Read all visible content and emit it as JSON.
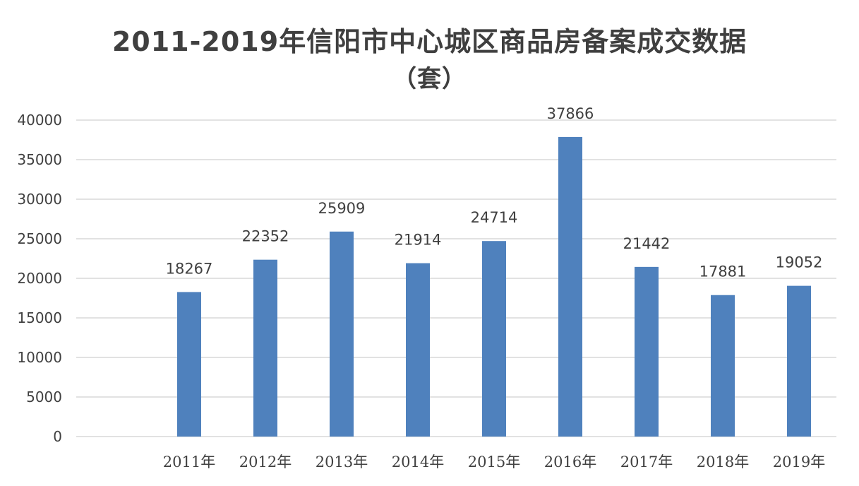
{
  "chart_data": {
    "type": "bar",
    "title": "2011-2019年信阳市中心城区商品房备案成交数据",
    "subtitle": "（套）",
    "categories": [
      "2011年",
      "2012年",
      "2013年",
      "2014年",
      "2015年",
      "2016年",
      "2017年",
      "2018年",
      "2019年"
    ],
    "values": [
      18267,
      22352,
      25909,
      21914,
      24714,
      37866,
      21442,
      17881,
      19052
    ],
    "data_labels": [
      "18267",
      "22352",
      "25909",
      "21914",
      "24714",
      "37866",
      "21442",
      "17881",
      "19052"
    ],
    "y_ticks": [
      "0",
      "5000",
      "10000",
      "15000",
      "20000",
      "25000",
      "30000",
      "35000",
      "40000"
    ],
    "ylim": [
      0,
      40000
    ],
    "xlabel": "",
    "ylabel": "",
    "grid": true,
    "legend": "none",
    "bar_color": "#4f81bd"
  }
}
